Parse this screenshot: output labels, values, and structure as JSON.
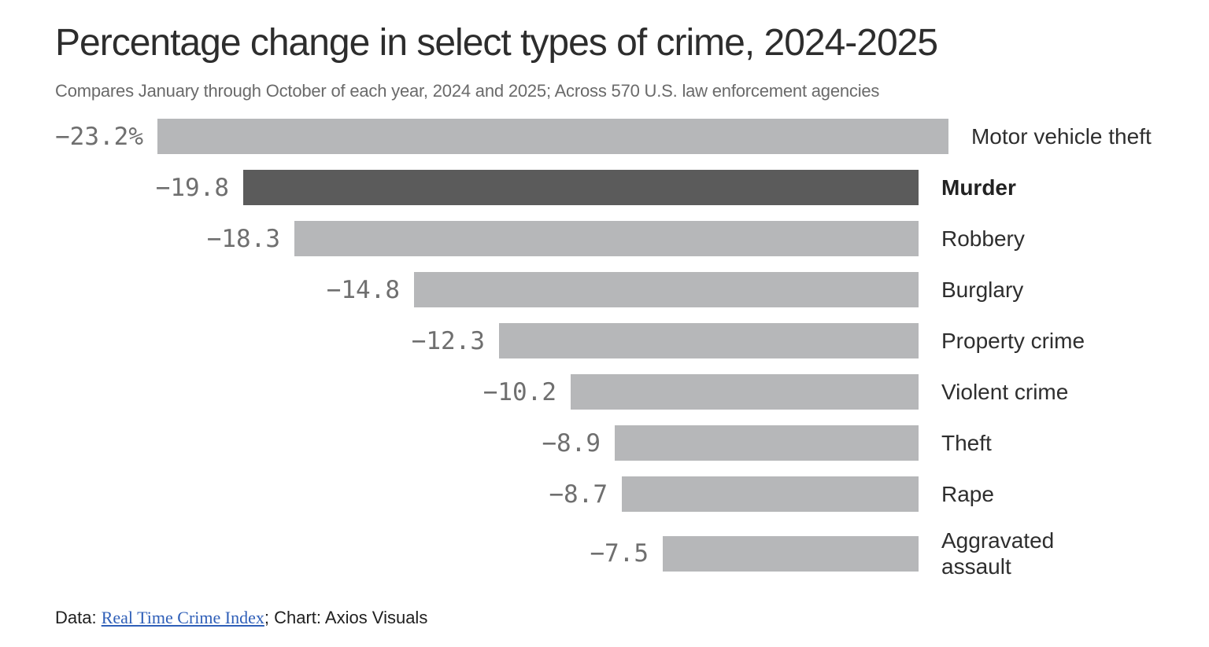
{
  "page": {
    "title": "Percentage change in select types of crime, 2024-2025",
    "subtitle": "Compares January through October of each year, 2024 and 2025; Across 570 U.S. law enforcement agencies",
    "footer": {
      "data_prefix": "Data: ",
      "link_label": "Real Time Crime Index",
      "suffix": "; Chart: Axios Visuals"
    }
  },
  "colors": {
    "title": "#2d2d2d",
    "subtitle": "#6a6a6a",
    "bar": "#b6b7b9",
    "bar_highlight": "#5b5b5b",
    "value_label": "#6f6f6f",
    "category_label": "#2e2e2e",
    "footer_text": "#1f1f1f",
    "link": "#2f5fb8"
  },
  "chart_data": {
    "type": "bar",
    "orientation": "horizontal",
    "bars_right_aligned": true,
    "title": "Percentage change in select types of crime, 2024-2025",
    "subtitle": "Compares January through October of each year, 2024 and 2025; Across 570 U.S. law enforcement agencies",
    "categories": [
      "Motor vehicle theft",
      "Murder",
      "Robbery",
      "Burglary",
      "Property crime",
      "Violent crime",
      "Theft",
      "Rape",
      "Aggravated assault"
    ],
    "category_labels": [
      "Motor vehicle theft",
      "Murder",
      "Robbery",
      "Burglary",
      "Property crime",
      "Violent crime",
      "Theft",
      "Rape",
      "Aggravated\nassault"
    ],
    "values": [
      -23.2,
      -19.8,
      -18.3,
      -14.8,
      -12.3,
      -10.2,
      -8.9,
      -8.7,
      -7.5
    ],
    "value_labels": [
      "−23.2%",
      "−19.8",
      "−18.3",
      "−14.8",
      "−12.3",
      "−10.2",
      "−8.9",
      "−8.7",
      "−7.5"
    ],
    "unit": "percent",
    "highlight_index": 1,
    "highlight_category": "Murder",
    "xlim": [
      -23.2,
      0
    ],
    "grid": "off",
    "legend": "none",
    "source_text": "Data: Real Time Crime Index; Chart: Axios Visuals"
  }
}
